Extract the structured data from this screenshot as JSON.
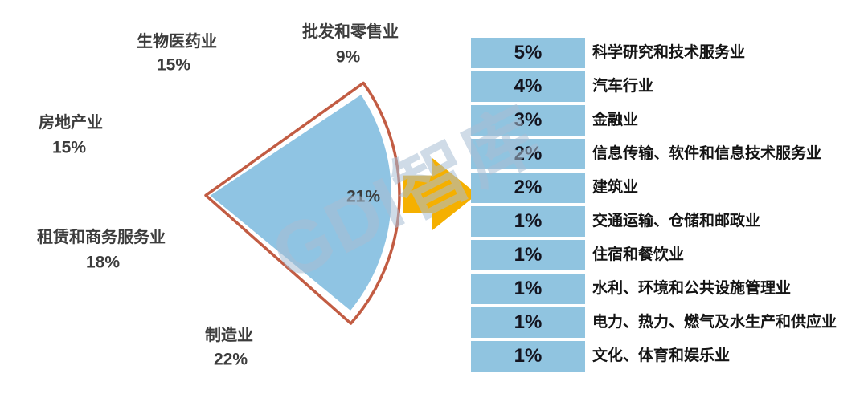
{
  "watermark": {
    "text": "GDI智库"
  },
  "colors": {
    "arrow": "#f5b000",
    "watermark": "rgba(168,190,212,0.55)",
    "explode_outline": "#c25c43",
    "table_cell": "#90c4e0",
    "pie_label_text": "#3c3c3c",
    "table_pct_text": "#14141f",
    "table_label_text": "#141414"
  },
  "chart_data": {
    "type": "pie",
    "title": "",
    "legend_position": "none",
    "start_angle_deg": -31.4,
    "slices": [
      {
        "label": "生物医药业",
        "value": 15,
        "value_text": "15%",
        "color": "#eac27e",
        "exploded": false,
        "label_pos": {
          "name": [
            220,
            52
          ],
          "pct": [
            216,
            81
          ]
        }
      },
      {
        "label": "批发和零售业",
        "value": 9,
        "value_text": "9%",
        "color": "#2e3357",
        "exploded": false,
        "label_pos": {
          "name": [
            436,
            40
          ],
          "pct": [
            433,
            71
          ]
        }
      },
      {
        "label": "",
        "value": 21,
        "value_text": "21%",
        "color": "#8fc4e3",
        "exploded": true,
        "label_pos": {
          "name": null,
          "pct": [
            452,
            245
          ]
        }
      },
      {
        "label": "制造业",
        "value": 22,
        "value_text": "22%",
        "color": "#f1ebd8",
        "exploded": false,
        "label_pos": {
          "name": [
            285,
            418
          ],
          "pct": [
            287,
            448
          ]
        }
      },
      {
        "label": "租赁和商务服务业",
        "value": 18,
        "value_text": "18%",
        "color": "#df7961",
        "exploded": false,
        "label_pos": {
          "name": [
            126,
            296
          ],
          "pct": [
            128,
            327
          ]
        }
      },
      {
        "label": "房地产业",
        "value": 15,
        "value_text": "15%",
        "color": "#8cb79c",
        "exploded": false,
        "label_pos": {
          "name": [
            88,
            153
          ],
          "pct": [
            86,
            184
          ]
        }
      }
    ],
    "detail_table": {
      "note": "breakdown of the exploded 21% slice",
      "rows": [
        {
          "percent": "5%",
          "label": "科学研究和技术服务业"
        },
        {
          "percent": "4%",
          "label": "汽车行业"
        },
        {
          "percent": "3%",
          "label": "金融业"
        },
        {
          "percent": "2%",
          "label": "信息传输、软件和信息技术服务业"
        },
        {
          "percent": "2%",
          "label": "建筑业"
        },
        {
          "percent": "1%",
          "label": "交通运输、仓储和邮政业"
        },
        {
          "percent": "1%",
          "label": "住宿和餐饮业"
        },
        {
          "percent": "1%",
          "label": "水利、环境和公共设施管理业"
        },
        {
          "percent": "1%",
          "label": "电力、热力、燃气及水生产和供应业"
        },
        {
          "percent": "1%",
          "label": "文化、体育和娱乐业"
        }
      ]
    }
  }
}
